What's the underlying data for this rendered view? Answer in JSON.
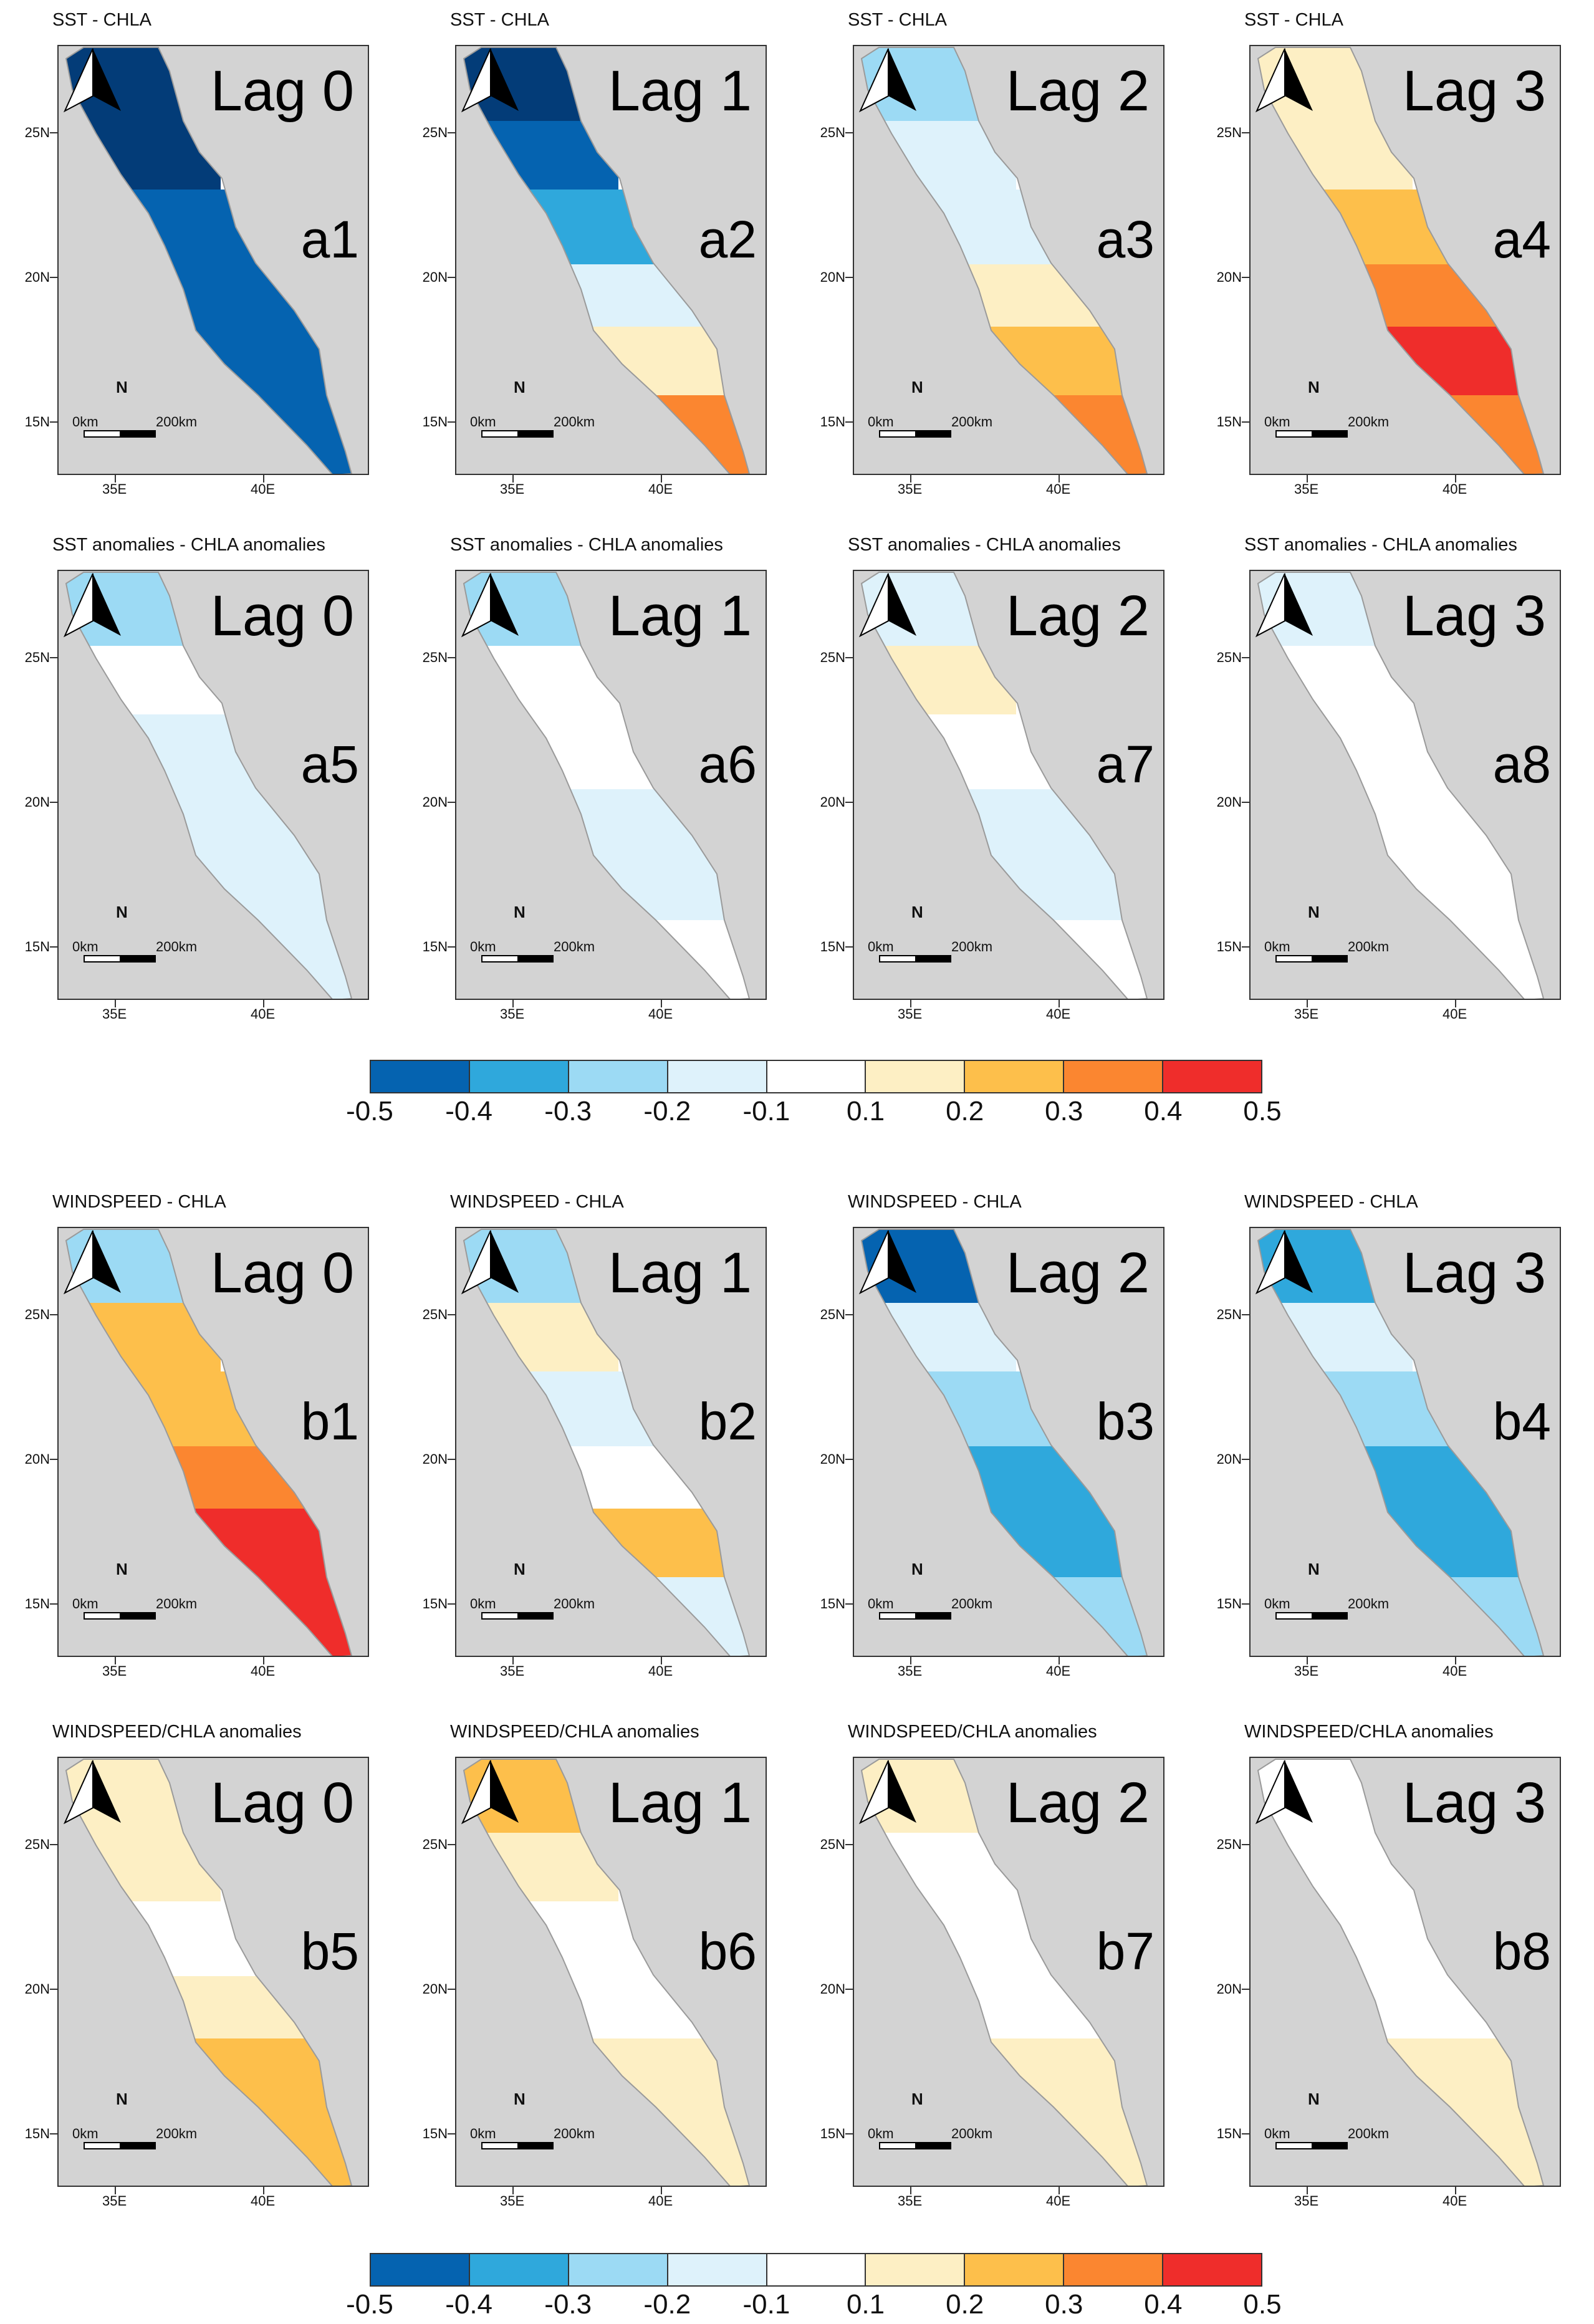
{
  "colorbar": {
    "ticks": [
      "-0.5",
      "-0.4",
      "-0.3",
      "-0.2",
      "-0.1",
      "0.1",
      "0.2",
      "0.3",
      "0.4",
      "0.5"
    ],
    "colors": [
      "#0563b0",
      "#2fa8dc",
      "#9cdaf4",
      "#def2fb",
      "#ffffff",
      "#fdefc4",
      "#fdbf4b",
      "#fb8630",
      "#ef2d2b"
    ]
  },
  "map_labels": {
    "lat": [
      "25N",
      "20N",
      "15N"
    ],
    "lon": [
      "35E",
      "40E"
    ],
    "north": "N",
    "scale_left": "0km",
    "scale_right": "200km"
  },
  "colors": {
    "land": "#d3d3d3",
    "sea_base": "#ffffff",
    "neg3": "#0563b0",
    "neg2": "#2fa8dc",
    "neg1": "#9cdaf4",
    "neg0": "#def2fb",
    "pos0": "#fdefc4",
    "pos1": "#fdbf4b",
    "pos2": "#fb8630",
    "pos3": "#ef2d2b",
    "deep": "#033c78"
  },
  "panels": [
    {
      "id": "a1",
      "title": "SST - CHLA",
      "lag": "Lag 0",
      "label": "a1",
      "fills": [
        "deep",
        "deep",
        "neg3",
        "neg3",
        "neg3",
        "neg3"
      ]
    },
    {
      "id": "a2",
      "title": "SST - CHLA",
      "lag": "Lag 1",
      "label": "a2",
      "fills": [
        "deep",
        "neg3",
        "neg2",
        "neg0",
        "pos0",
        "pos2"
      ]
    },
    {
      "id": "a3",
      "title": "SST - CHLA",
      "lag": "Lag 2",
      "label": "a3",
      "fills": [
        "neg1",
        "neg0",
        "neg0",
        "pos0",
        "pos1",
        "pos2"
      ]
    },
    {
      "id": "a4",
      "title": "SST - CHLA",
      "lag": "Lag 3",
      "label": "a4",
      "fills": [
        "pos0",
        "pos0",
        "pos1",
        "pos2",
        "pos3",
        "pos2"
      ]
    },
    {
      "id": "a5",
      "title": "SST anomalies - CHLA anomalies",
      "lag": "Lag 0",
      "label": "a5",
      "fills": [
        "neg1",
        "sea_base",
        "neg0",
        "neg0",
        "neg0",
        "neg0"
      ]
    },
    {
      "id": "a6",
      "title": "SST anomalies - CHLA anomalies",
      "lag": "Lag 1",
      "label": "a6",
      "fills": [
        "neg1",
        "sea_base",
        "sea_base",
        "neg0",
        "neg0",
        "sea_base"
      ]
    },
    {
      "id": "a7",
      "title": "SST anomalies - CHLA anomalies",
      "lag": "Lag 2",
      "label": "a7",
      "fills": [
        "neg0",
        "pos0",
        "sea_base",
        "neg0",
        "neg0",
        "sea_base"
      ]
    },
    {
      "id": "a8",
      "title": "SST anomalies - CHLA anomalies",
      "lag": "Lag 3",
      "label": "a8",
      "fills": [
        "neg0",
        "sea_base",
        "sea_base",
        "sea_base",
        "sea_base",
        "sea_base"
      ]
    },
    {
      "id": "b1",
      "title": "WINDSPEED - CHLA",
      "lag": "Lag 0",
      "label": "b1",
      "fills": [
        "neg1",
        "pos1",
        "pos1",
        "pos2",
        "pos3",
        "pos3"
      ]
    },
    {
      "id": "b2",
      "title": "WINDSPEED - CHLA",
      "lag": "Lag 1",
      "label": "b2",
      "fills": [
        "neg1",
        "pos0",
        "neg0",
        "sea_base",
        "pos1",
        "neg0"
      ]
    },
    {
      "id": "b3",
      "title": "WINDSPEED - CHLA",
      "lag": "Lag 2",
      "label": "b3",
      "fills": [
        "neg3",
        "neg0",
        "neg1",
        "neg2",
        "neg2",
        "neg1"
      ]
    },
    {
      "id": "b4",
      "title": "WINDSPEED - CHLA",
      "lag": "Lag 3",
      "label": "b4",
      "fills": [
        "neg2",
        "neg0",
        "neg1",
        "neg2",
        "neg2",
        "neg1"
      ]
    },
    {
      "id": "b5",
      "title": "WINDSPEED/CHLA anomalies",
      "lag": "Lag 0",
      "label": "b5",
      "fills": [
        "pos0",
        "pos0",
        "sea_base",
        "pos0",
        "pos1",
        "pos1"
      ]
    },
    {
      "id": "b6",
      "title": "WINDSPEED/CHLA anomalies",
      "lag": "Lag 1",
      "label": "b6",
      "fills": [
        "pos1",
        "pos0",
        "sea_base",
        "sea_base",
        "pos0",
        "pos0"
      ]
    },
    {
      "id": "b7",
      "title": "WINDSPEED/CHLA anomalies",
      "lag": "Lag 2",
      "label": "b7",
      "fills": [
        "pos0",
        "sea_base",
        "sea_base",
        "sea_base",
        "pos0",
        "pos0"
      ]
    },
    {
      "id": "b8",
      "title": "WINDSPEED/CHLA anomalies",
      "lag": "Lag 3",
      "label": "b8",
      "fills": [
        "sea_base",
        "sea_base",
        "sea_base",
        "sea_base",
        "pos0",
        "pos0"
      ]
    }
  ]
}
